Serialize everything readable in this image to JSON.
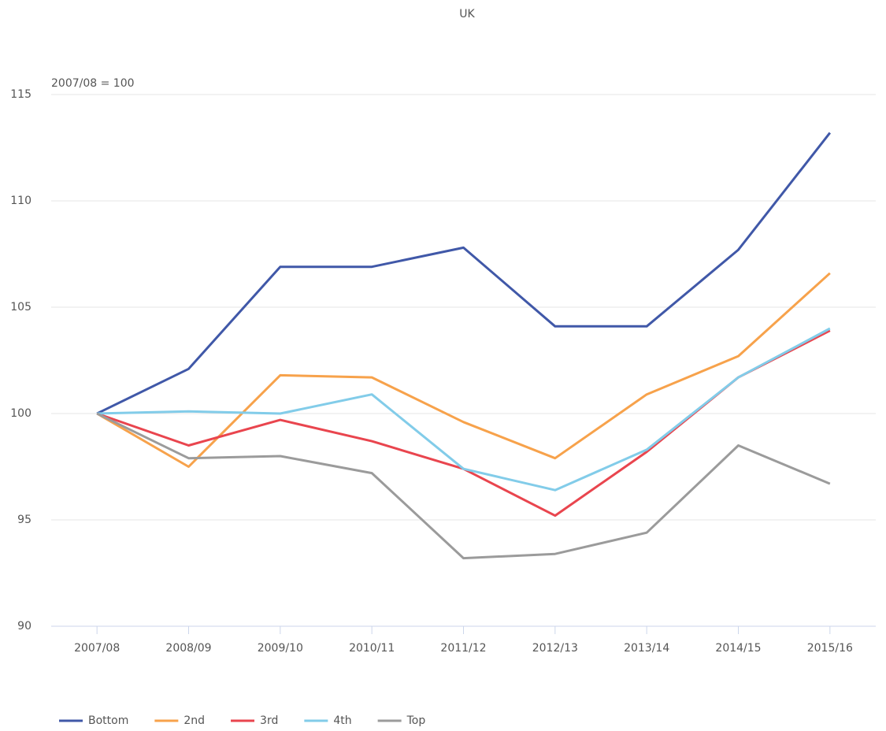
{
  "chart_data": {
    "type": "line",
    "title": "UK",
    "annotation": "2007/08 = 100",
    "categories": [
      "2007/08",
      "2008/09",
      "2009/10",
      "2010/11",
      "2011/12",
      "2012/13",
      "2013/14",
      "2014/15",
      "2015/16"
    ],
    "series": [
      {
        "name": "Bottom",
        "color": "#4058a8",
        "values": [
          100,
          102.1,
          106.9,
          106.9,
          107.8,
          104.1,
          104.1,
          107.7,
          113.2
        ]
      },
      {
        "name": "2nd",
        "color": "#f7a24b",
        "values": [
          100,
          97.5,
          101.8,
          101.7,
          99.6,
          97.9,
          100.9,
          102.7,
          106.6
        ]
      },
      {
        "name": "3rd",
        "color": "#e9454e",
        "values": [
          100,
          98.5,
          99.7,
          98.7,
          97.4,
          95.2,
          98.2,
          101.7,
          103.9
        ]
      },
      {
        "name": "4th",
        "color": "#82cce9",
        "values": [
          100,
          100.1,
          100,
          100.9,
          97.4,
          96.4,
          98.3,
          101.7,
          104.0
        ]
      },
      {
        "name": "Top",
        "color": "#9b9b9b",
        "values": [
          100,
          97.9,
          98.0,
          97.2,
          93.2,
          93.4,
          94.4,
          98.5,
          96.7
        ]
      }
    ],
    "ylim": [
      90,
      115
    ],
    "yticks": [
      90,
      95,
      100,
      105,
      110,
      115
    ],
    "grid": true,
    "legend": "bottom-left"
  }
}
